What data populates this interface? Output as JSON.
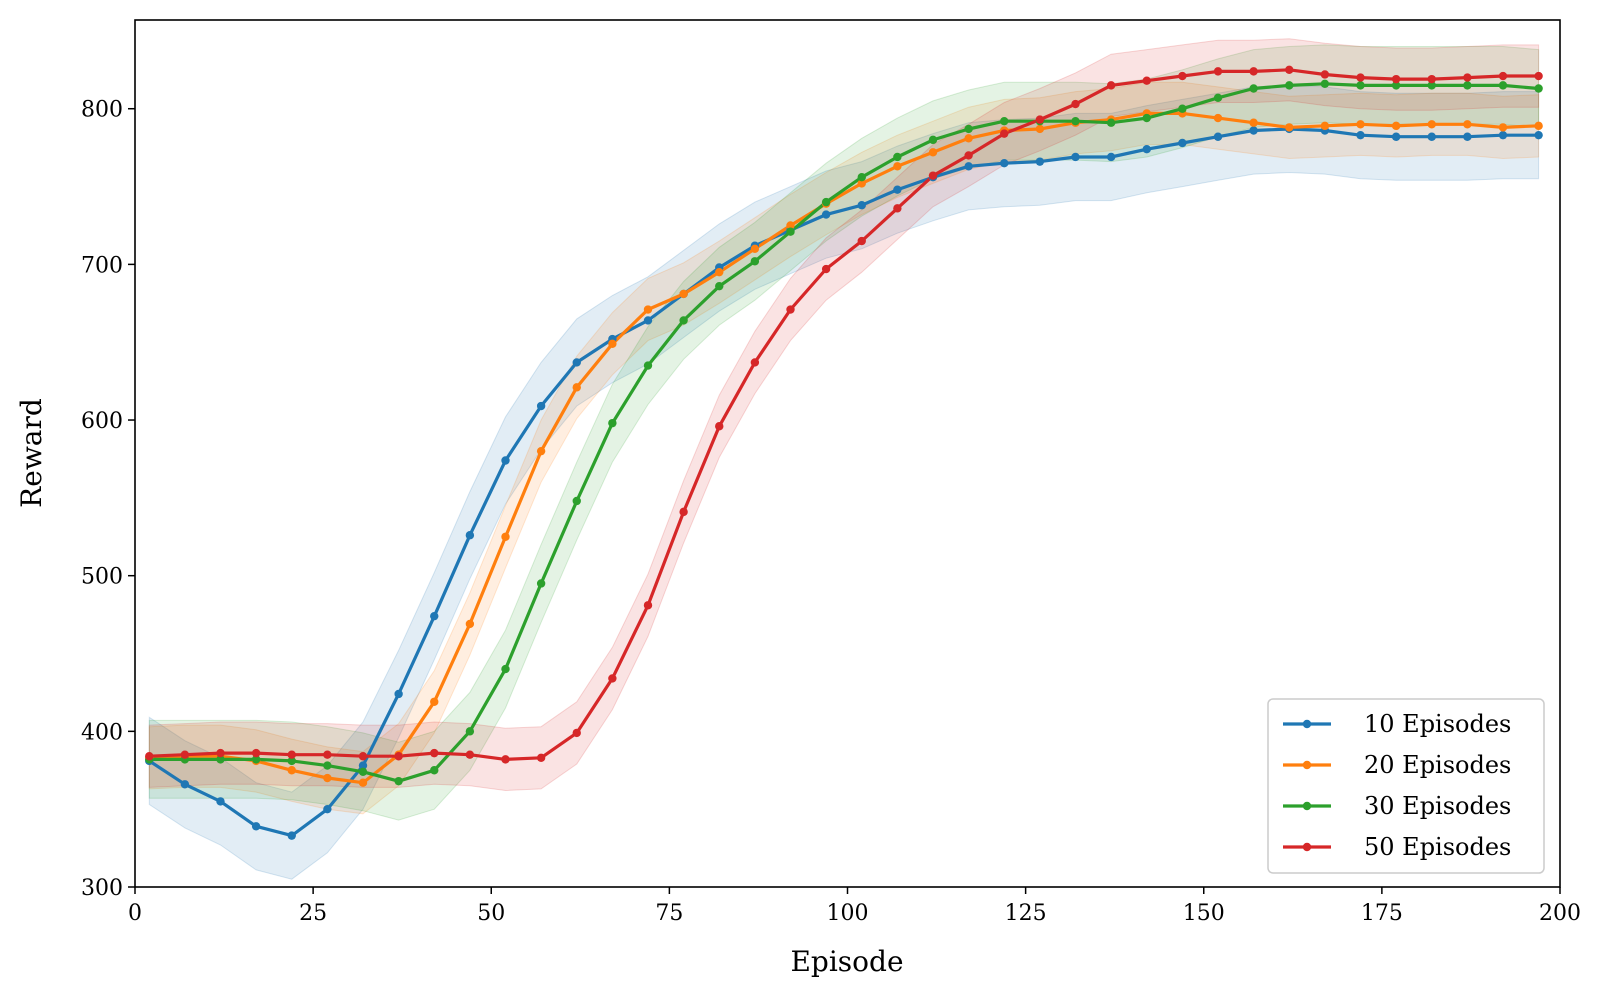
{
  "chart_data": {
    "type": "line",
    "title": "",
    "xlabel": "Episode",
    "ylabel": "Reward",
    "xlim": [
      0,
      200
    ],
    "ylim": [
      300,
      857
    ],
    "xticks": [
      "0",
      "25",
      "50",
      "75",
      "100",
      "125",
      "150",
      "175",
      "200"
    ],
    "yticks": [
      "300",
      "400",
      "500",
      "600",
      "700",
      "800"
    ],
    "grid": false,
    "legend_position": "lower-right",
    "x": [
      2,
      7,
      12,
      17,
      22,
      27,
      32,
      37,
      42,
      47,
      52,
      57,
      62,
      67,
      72,
      77,
      82,
      87,
      92,
      97,
      102,
      107,
      112,
      117,
      122,
      127,
      132,
      137,
      142,
      147,
      152,
      157,
      162,
      167,
      172,
      177,
      182,
      187,
      192,
      197
    ],
    "series": [
      {
        "name": "10 Episodes",
        "color": "#1f77b4",
        "values": [
          381,
          366,
          355,
          339,
          333,
          350,
          378,
          424,
          474,
          526,
          574,
          609,
          637,
          652,
          664,
          681,
          698,
          712,
          722,
          732,
          738,
          748,
          756,
          763,
          765,
          766,
          769,
          769,
          774,
          778,
          782,
          786,
          787,
          786,
          783,
          782,
          782,
          782,
          783,
          783
        ],
        "band": 28
      },
      {
        "name": "20 Episodes",
        "color": "#ff7f0e",
        "values": [
          383,
          384,
          384,
          381,
          375,
          370,
          367,
          385,
          419,
          469,
          525,
          580,
          621,
          649,
          671,
          681,
          695,
          710,
          725,
          739,
          752,
          763,
          772,
          781,
          786,
          787,
          791,
          793,
          797,
          797,
          794,
          791,
          788,
          789,
          790,
          789,
          790,
          790,
          788,
          789
        ],
        "band": 20
      },
      {
        "name": "30 Episodes",
        "color": "#2ca02c",
        "values": [
          382,
          382,
          382,
          382,
          381,
          378,
          374,
          368,
          375,
          400,
          440,
          495,
          548,
          598,
          635,
          664,
          686,
          702,
          721,
          740,
          756,
          769,
          780,
          787,
          792,
          792,
          792,
          791,
          794,
          800,
          807,
          813,
          815,
          816,
          815,
          815,
          815,
          815,
          815,
          813
        ],
        "band": 25
      },
      {
        "name": "50 Episodes",
        "color": "#d62728",
        "values": [
          384,
          385,
          386,
          386,
          385,
          385,
          384,
          384,
          386,
          385,
          382,
          383,
          399,
          434,
          481,
          541,
          596,
          637,
          671,
          697,
          715,
          736,
          757,
          770,
          784,
          793,
          803,
          815,
          818,
          821,
          824,
          824,
          825,
          822,
          820,
          819,
          819,
          820,
          821,
          821
        ],
        "band": 20
      }
    ]
  }
}
